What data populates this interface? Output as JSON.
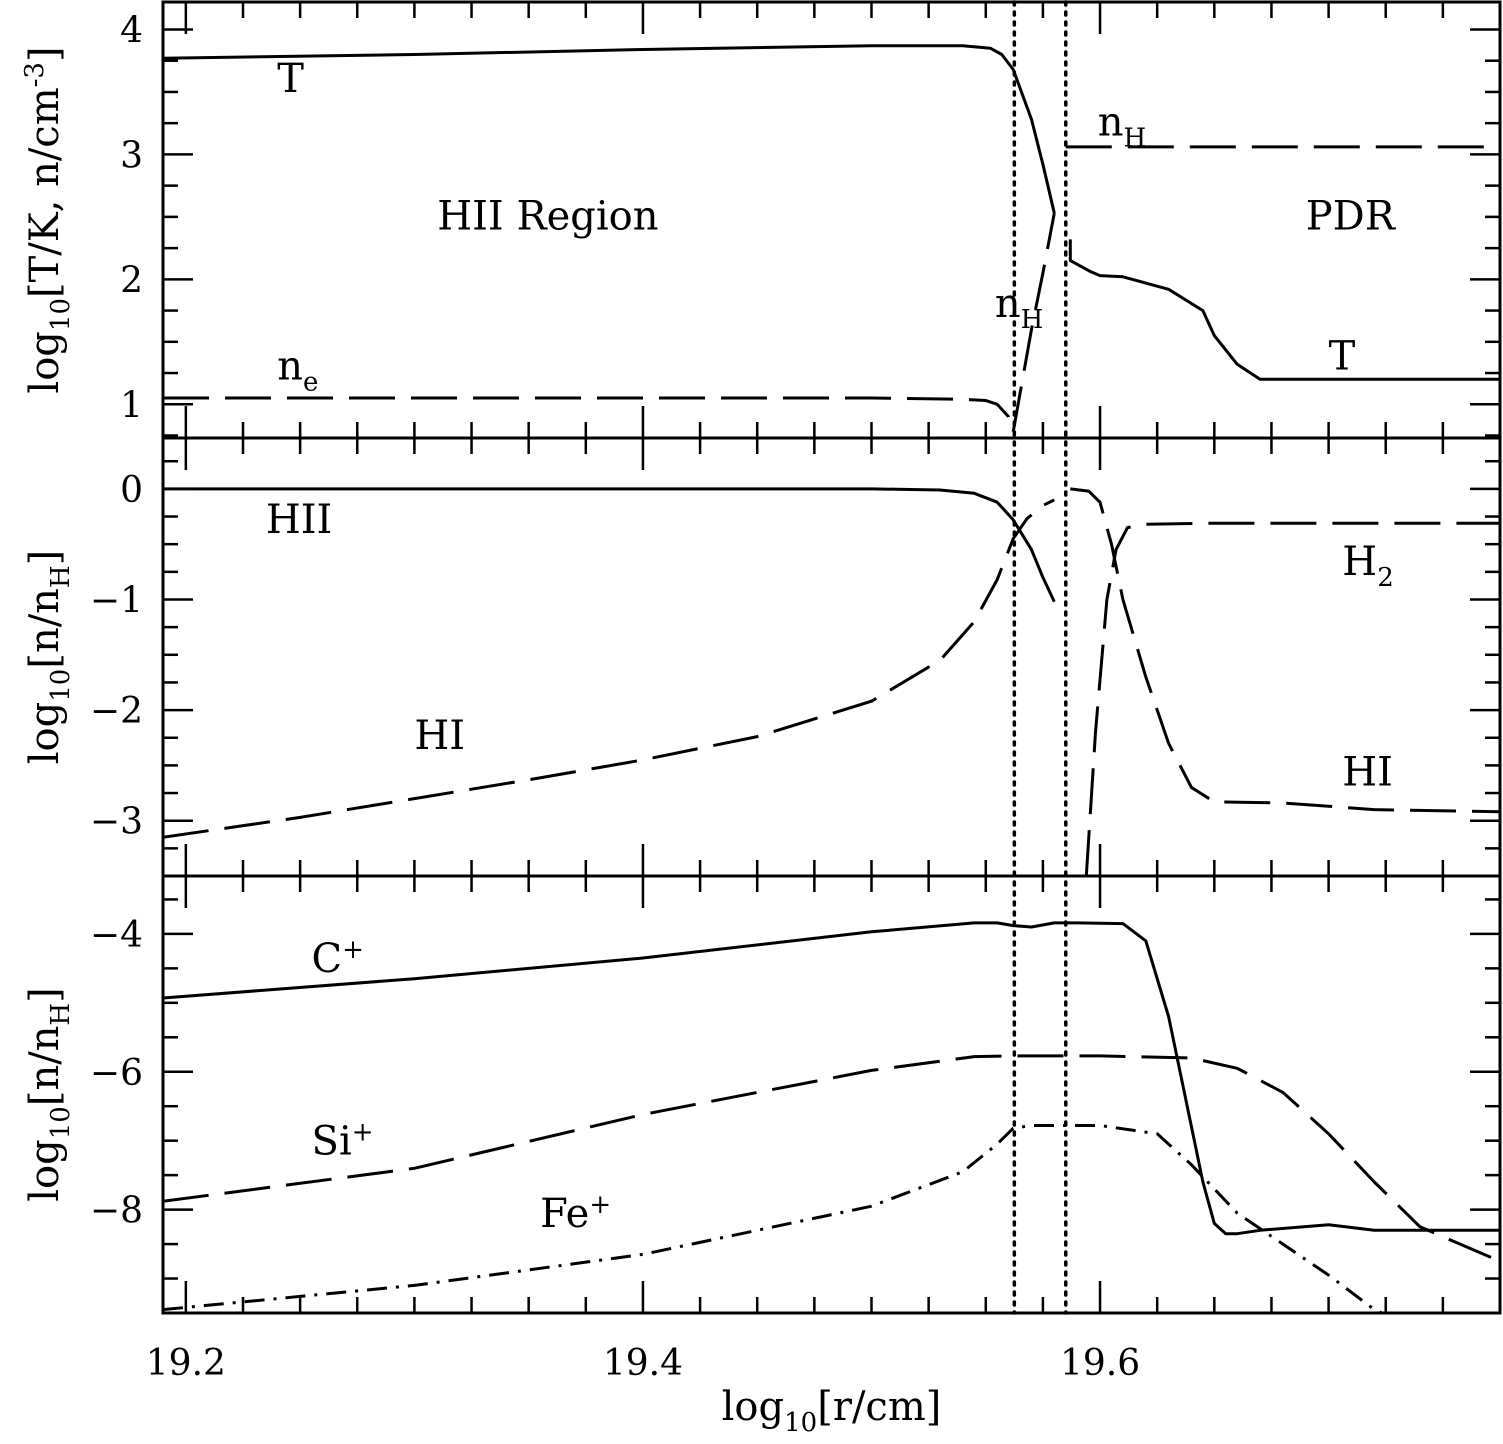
{
  "chart_data": [
    {
      "type": "line",
      "panel": "top",
      "ylabel": "log10[T/K, n/cm-3]",
      "ylabel_parts": {
        "pre": "log",
        "sub": "10",
        "post": "[T/K, n/cm",
        "sup": "-3",
        "end": "]"
      },
      "xlim": [
        19.19,
        19.775
      ],
      "ylim": [
        0.73,
        4.22
      ],
      "yticks": [
        1,
        2,
        3,
        4
      ],
      "ytick_labels": [
        "1",
        "2",
        "3",
        "4"
      ],
      "annotations": [
        {
          "id": "region-hii",
          "text": "HII Region",
          "x": 19.31,
          "y": 2.4
        },
        {
          "id": "region-pdr",
          "text": "PDR",
          "x": 19.69,
          "y": 2.4
        },
        {
          "id": "label-T-left",
          "text": "T",
          "x": 19.24,
          "y": 3.5
        },
        {
          "id": "label-ne",
          "base": "n",
          "sub": "e",
          "x": 19.24,
          "y": 1.2
        },
        {
          "id": "label-nH-mid",
          "base": "n",
          "sub": "H",
          "x": 19.554,
          "y": 1.7
        },
        {
          "id": "label-nH-right",
          "base": "n",
          "sub": "H",
          "x": 19.599,
          "y": 3.15
        },
        {
          "id": "label-T-right",
          "text": "T",
          "x": 19.7,
          "y": 1.28
        }
      ],
      "series": [
        {
          "id": "T-hii",
          "style": "solid",
          "x": [
            19.19,
            19.3,
            19.4,
            19.5,
            19.54,
            19.552,
            19.557,
            19.562,
            19.57,
            19.575,
            19.58
          ],
          "y": [
            3.77,
            3.8,
            3.84,
            3.87,
            3.87,
            3.85,
            3.8,
            3.68,
            3.28,
            2.92,
            2.53
          ]
        },
        {
          "id": "T-pdr",
          "style": "solid",
          "x": [
            19.587,
            19.587,
            19.59,
            19.596,
            19.6,
            19.61,
            19.63,
            19.645,
            19.65,
            19.66,
            19.67,
            19.7,
            19.75,
            19.775
          ],
          "y": [
            2.32,
            2.15,
            2.12,
            2.06,
            2.03,
            2.02,
            1.92,
            1.75,
            1.55,
            1.32,
            1.2,
            1.2,
            1.2,
            1.2
          ]
        },
        {
          "id": "ne",
          "style": "dashed",
          "x": [
            19.19,
            19.3,
            19.4,
            19.5,
            19.54,
            19.55,
            19.555,
            19.56,
            19.562
          ],
          "y": [
            1.05,
            1.05,
            1.05,
            1.05,
            1.04,
            1.03,
            1.0,
            0.9,
            0.78
          ]
        },
        {
          "id": "nH-rise",
          "style": "dashed",
          "x": [
            19.562,
            19.57,
            19.575,
            19.58
          ],
          "y": [
            0.78,
            1.6,
            2.05,
            2.53
          ]
        },
        {
          "id": "nH-pdr",
          "style": "dashed",
          "x": [
            19.585,
            19.62,
            19.7,
            19.775
          ],
          "y": [
            3.06,
            3.06,
            3.06,
            3.06
          ]
        }
      ]
    },
    {
      "type": "line",
      "panel": "middle",
      "ylabel": "log10[n/nH]",
      "ylabel_parts": {
        "pre": "log",
        "sub": "10",
        "post": "[n/n",
        "sub2": "H",
        "end": "]"
      },
      "xlim": [
        19.19,
        19.775
      ],
      "ylim": [
        -3.5,
        0.46
      ],
      "yticks": [
        -3,
        -2,
        -1,
        0
      ],
      "ytick_labels": [
        "−3",
        "−2",
        "−1",
        "0"
      ],
      "annotations": [
        {
          "id": "label-HII",
          "text": "HII",
          "x": 19.235,
          "y": -0.4
        },
        {
          "id": "label-HI-left",
          "text": "HI",
          "x": 19.3,
          "y": -2.35
        },
        {
          "id": "label-H2",
          "base": "H",
          "sub": "2",
          "x": 19.706,
          "y": -0.78
        },
        {
          "id": "label-HI-right",
          "text": "HI",
          "x": 19.706,
          "y": -2.68
        }
      ],
      "series": [
        {
          "id": "HII",
          "style": "solid",
          "x": [
            19.19,
            19.3,
            19.4,
            19.5,
            19.53,
            19.545,
            19.555,
            19.562,
            19.57,
            19.575,
            19.58
          ],
          "y": [
            0.0,
            0.0,
            0.0,
            0.0,
            -0.01,
            -0.04,
            -0.12,
            -0.28,
            -0.55,
            -0.8,
            -1.02
          ]
        },
        {
          "id": "HI-hii",
          "style": "dashed",
          "x": [
            19.19,
            19.25,
            19.3,
            19.35,
            19.4,
            19.45,
            19.5,
            19.53,
            19.545,
            19.555,
            19.562,
            19.568,
            19.575,
            19.58
          ],
          "y": [
            -3.15,
            -2.97,
            -2.8,
            -2.63,
            -2.45,
            -2.24,
            -1.92,
            -1.55,
            -1.2,
            -0.82,
            -0.45,
            -0.27,
            -0.15,
            -0.1
          ]
        },
        {
          "id": "HI-pdr",
          "style": "dashed",
          "x": [
            19.587,
            19.595,
            19.6,
            19.605,
            19.61,
            19.62,
            19.63,
            19.64,
            19.65,
            19.68,
            19.72,
            19.775
          ],
          "y": [
            0.0,
            -0.02,
            -0.12,
            -0.5,
            -1.0,
            -1.7,
            -2.3,
            -2.7,
            -2.83,
            -2.84,
            -2.9,
            -2.92
          ]
        },
        {
          "id": "H2",
          "style": "dashed",
          "x": [
            19.594,
            19.598,
            19.603,
            19.607,
            19.612,
            19.62,
            19.65,
            19.7,
            19.775
          ],
          "y": [
            -3.5,
            -2.2,
            -1.0,
            -0.55,
            -0.35,
            -0.32,
            -0.31,
            -0.31,
            -0.31
          ]
        }
      ]
    },
    {
      "type": "line",
      "panel": "bottom",
      "xlabel": "log10[r/cm]",
      "xlabel_parts": {
        "pre": "log",
        "sub": "10",
        "post": "[r/cm]"
      },
      "ylabel": "log10[n/nH]",
      "ylabel_parts": {
        "pre": "log",
        "sub": "10",
        "post": "[n/n",
        "sub2": "H",
        "end": "]"
      },
      "xlim": [
        19.19,
        19.775
      ],
      "ylim": [
        -9.5,
        -3.16
      ],
      "xticks": [
        19.2,
        19.4,
        19.6
      ],
      "xtick_labels": [
        "19.2",
        "19.4",
        "19.6"
      ],
      "yticks": [
        -8,
        -6,
        -4
      ],
      "ytick_labels": [
        "−8",
        "−6",
        "−4"
      ],
      "annotations": [
        {
          "id": "label-Cplus",
          "base": "C",
          "sup": "+",
          "x": 19.255,
          "y": -4.55
        },
        {
          "id": "label-Siplus",
          "base": "Si",
          "sup": "+",
          "x": 19.255,
          "y": -7.2
        },
        {
          "id": "label-Feplus",
          "base": "Fe",
          "sup": "+",
          "x": 19.355,
          "y": -8.25
        }
      ],
      "series": [
        {
          "id": "Cplus",
          "style": "solid",
          "x": [
            19.19,
            19.3,
            19.4,
            19.5,
            19.545,
            19.555,
            19.562,
            19.57,
            19.58,
            19.59,
            19.61,
            19.62,
            19.63,
            19.64,
            19.645,
            19.65,
            19.655,
            19.66,
            19.67,
            19.7,
            19.72,
            19.775
          ],
          "y": [
            -4.93,
            -4.65,
            -4.35,
            -3.97,
            -3.84,
            -3.84,
            -3.88,
            -3.9,
            -3.84,
            -3.84,
            -3.85,
            -4.1,
            -5.2,
            -6.8,
            -7.6,
            -8.2,
            -8.35,
            -8.35,
            -8.3,
            -8.22,
            -8.3,
            -8.3
          ]
        },
        {
          "id": "Siplus",
          "style": "dashed",
          "x": [
            19.19,
            19.3,
            19.4,
            19.5,
            19.545,
            19.562,
            19.6,
            19.64,
            19.66,
            19.68,
            19.7,
            19.72,
            19.74,
            19.775
          ],
          "y": [
            -7.88,
            -7.4,
            -6.62,
            -5.98,
            -5.78,
            -5.77,
            -5.77,
            -5.8,
            -5.95,
            -6.3,
            -6.9,
            -7.6,
            -8.25,
            -8.75
          ]
        },
        {
          "id": "Feplus",
          "style": "dashdot",
          "x": [
            19.19,
            19.3,
            19.4,
            19.5,
            19.54,
            19.555,
            19.562,
            19.57,
            19.6,
            19.625,
            19.64,
            19.66,
            19.68,
            19.7,
            19.72,
            19.73
          ],
          "y": [
            -9.45,
            -9.1,
            -8.65,
            -7.95,
            -7.45,
            -7.05,
            -6.82,
            -6.78,
            -6.78,
            -6.9,
            -7.35,
            -8.05,
            -8.5,
            -8.95,
            -9.45,
            -9.6
          ]
        }
      ]
    }
  ],
  "vlines": [
    {
      "id": "boundary-ionization-front",
      "x": 19.5625
    },
    {
      "id": "boundary-dissociation-front",
      "x": 19.585
    }
  ],
  "colors": {
    "line": "#000000",
    "background": "#ffffff"
  }
}
